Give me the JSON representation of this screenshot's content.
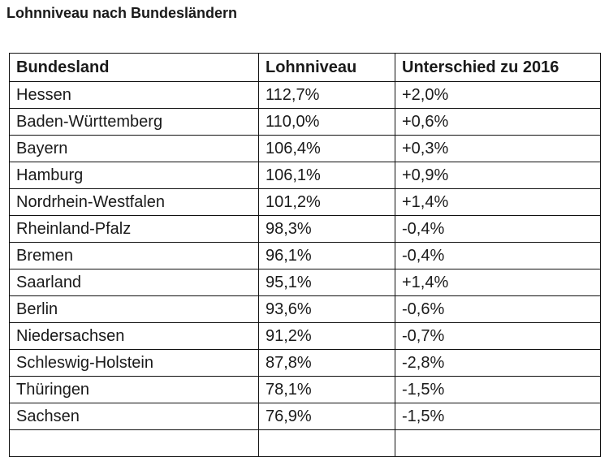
{
  "page": {
    "title": "Lohnniveau nach Bundesländern"
  },
  "table": {
    "headers": [
      "Bundesland",
      "Lohnniveau",
      "Unterschied zu 2016"
    ],
    "rows": [
      [
        "Hessen",
        "112,7%",
        "+2,0%"
      ],
      [
        "Baden-Württemberg",
        "110,0%",
        "+0,6%"
      ],
      [
        "Bayern",
        "106,4%",
        "+0,3%"
      ],
      [
        "Hamburg",
        "106,1%",
        "+0,9%"
      ],
      [
        "Nordrhein-Westfalen",
        "101,2%",
        "+1,4%"
      ],
      [
        "Rheinland-Pfalz",
        "98,3%",
        "-0,4%"
      ],
      [
        "Bremen",
        "96,1%",
        "-0,4%"
      ],
      [
        "Saarland",
        "95,1%",
        "+1,4%"
      ],
      [
        "Berlin",
        "93,6%",
        "-0,6%"
      ],
      [
        "Niedersachsen",
        "91,2%",
        "-0,7%"
      ],
      [
        "Schleswig-Holstein",
        "87,8%",
        "-2,8%"
      ],
      [
        "Thüringen",
        "78,1%",
        "-1,5%"
      ],
      [
        "Sachsen",
        "76,9%",
        "-1,5%"
      ]
    ]
  }
}
